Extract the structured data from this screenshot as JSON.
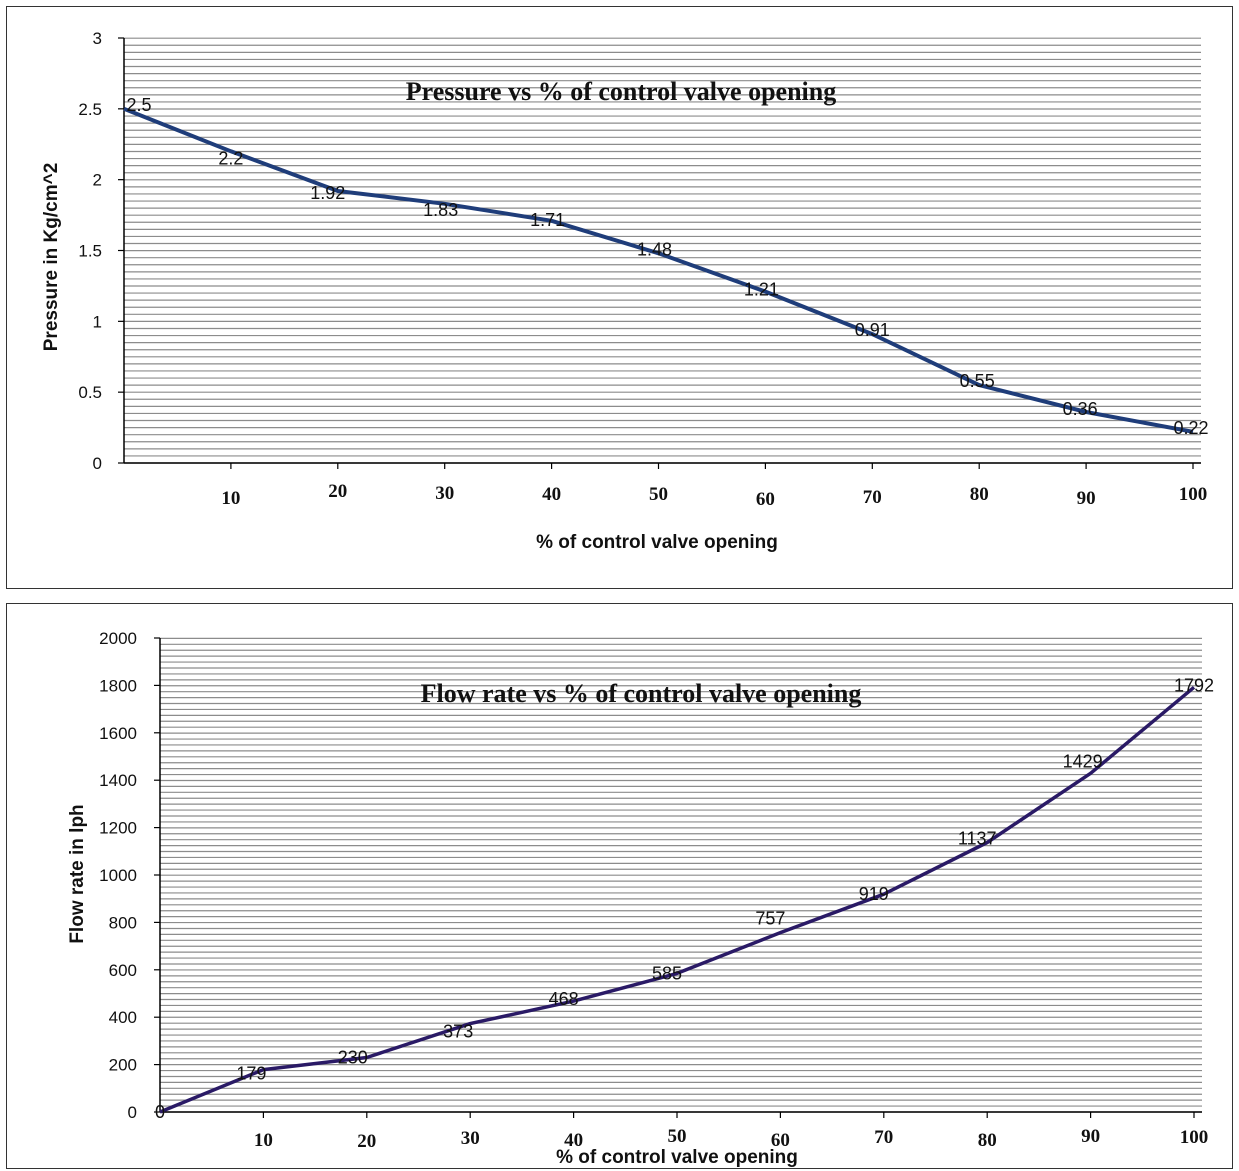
{
  "chart_data": [
    {
      "type": "line",
      "title": "Pressure vs % of control valve opening",
      "xlabel": "% of control valve opening",
      "ylabel": "Pressure in Kg/cm^2",
      "xlim": [
        0,
        100
      ],
      "ylim": [
        0,
        3
      ],
      "yticks": [
        0,
        0.5,
        1,
        1.5,
        2,
        2.5,
        3
      ],
      "ytick_labels": [
        "0",
        "0.5",
        "1",
        "1.5",
        "2",
        "2.5",
        "3"
      ],
      "xticks": [
        10,
        20,
        30,
        40,
        50,
        60,
        70,
        80,
        90,
        100
      ],
      "xtick_labels": [
        "10",
        "20",
        "30",
        "40",
        "50",
        "60",
        "70",
        "80",
        "90",
        "100"
      ],
      "grid": true,
      "x": [
        0,
        10,
        20,
        30,
        40,
        50,
        60,
        70,
        80,
        90,
        100
      ],
      "values": [
        2.5,
        2.2,
        1.92,
        1.83,
        1.71,
        1.48,
        1.21,
        0.91,
        0.55,
        0.36,
        0.22
      ],
      "data_labels": [
        "2.5",
        "2.2",
        "1.92",
        "1.83",
        "1.71",
        "1.48",
        "1.21",
        "0.91",
        "0.55",
        "0.36",
        "0.22"
      ],
      "color": "#1f3d7a"
    },
    {
      "type": "line",
      "title": "Flow rate vs % of control valve opening",
      "xlabel": "% of control valve opening",
      "ylabel": "Flow rate in lph",
      "xlim": [
        0,
        100
      ],
      "ylim": [
        0,
        2000
      ],
      "yticks": [
        0,
        200,
        400,
        600,
        800,
        1000,
        1200,
        1400,
        1600,
        1800,
        2000
      ],
      "ytick_labels": [
        "0",
        "200",
        "400",
        "600",
        "800",
        "1000",
        "1200",
        "1400",
        "1600",
        "1800",
        "2000"
      ],
      "xticks": [
        10,
        20,
        30,
        40,
        50,
        60,
        70,
        80,
        90,
        100
      ],
      "xtick_labels": [
        "10",
        "20",
        "30",
        "40",
        "50",
        "60",
        "70",
        "80",
        "90",
        "100"
      ],
      "grid": true,
      "x": [
        0,
        10,
        20,
        30,
        40,
        50,
        60,
        70,
        80,
        90,
        100
      ],
      "values": [
        0,
        179,
        230,
        373,
        468,
        585,
        757,
        919,
        1137,
        1429,
        1792
      ],
      "data_labels": [
        "0",
        "179",
        "230",
        "373",
        "468",
        "585",
        "757",
        "919",
        "1137",
        "1429",
        "1792"
      ],
      "color": "#2a1a66"
    }
  ]
}
